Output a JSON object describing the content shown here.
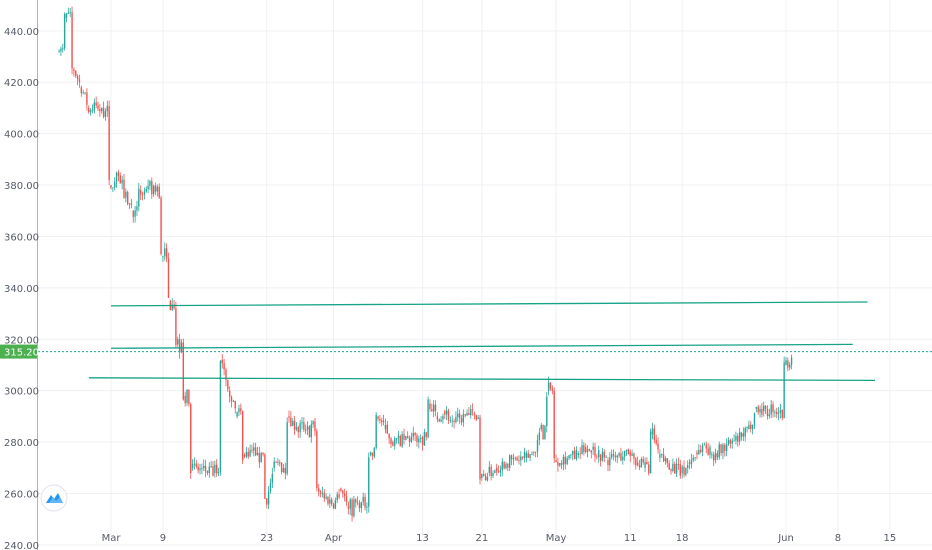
{
  "chart_data": {
    "type": "candlestick",
    "y_axis": {
      "ticks": [
        "440.00",
        "420.00",
        "400.00",
        "380.00",
        "360.00",
        "340.00",
        "320.00",
        "300.00",
        "280.00",
        "260.00",
        "240.00"
      ],
      "ylim": [
        238,
        452
      ]
    },
    "x_axis": {
      "ticks": [
        "Mar",
        "9",
        "23",
        "Apr",
        "13",
        "21",
        "May",
        "11",
        "18",
        "Jun",
        "8",
        "15"
      ],
      "tick_dates": [
        "2020-03-02",
        "2020-03-09",
        "2020-03-23",
        "2020-04-01",
        "2020-04-13",
        "2020-04-21",
        "2020-05-01",
        "2020-05-11",
        "2020-05-18",
        "2020-06-01",
        "2020-06-08",
        "2020-06-15"
      ]
    },
    "current_price": {
      "label": "315.20",
      "value": 315.2
    },
    "colors": {
      "up": "#26a69a",
      "down": "#ef5350",
      "trendline": "#17a388",
      "grid": "#eef0f3",
      "axis": "#555b66",
      "price_badge": "#4caf50"
    },
    "grid": true,
    "trendlines": [
      {
        "x": [
          "2020-03-02",
          "2020-06-12"
        ],
        "y": [
          333,
          334.5
        ]
      },
      {
        "x": [
          "2020-03-02",
          "2020-06-10"
        ],
        "y": [
          316.5,
          318
        ]
      },
      {
        "x": [
          "2020-02-28",
          "2020-06-13"
        ],
        "y": [
          305,
          304
        ]
      }
    ],
    "close_path": [
      [
        "2020-02-24",
        432
      ],
      [
        "2020-02-25",
        445
      ],
      [
        "2020-02-26",
        425
      ],
      [
        "2020-02-27",
        418
      ],
      [
        "2020-02-28",
        410
      ],
      [
        "2020-03-02",
        380
      ],
      [
        "2020-03-03",
        385
      ],
      [
        "2020-03-04",
        375
      ],
      [
        "2020-03-05",
        370
      ],
      [
        "2020-03-06",
        378
      ],
      [
        "2020-03-09",
        352
      ],
      [
        "2020-03-10",
        335
      ],
      [
        "2020-03-11",
        318
      ],
      [
        "2020-03-12",
        298
      ],
      [
        "2020-03-13",
        270
      ],
      [
        "2020-03-16",
        268
      ],
      [
        "2020-03-17",
        312
      ],
      [
        "2020-03-18",
        300
      ],
      [
        "2020-03-19",
        290
      ],
      [
        "2020-03-20",
        275
      ],
      [
        "2020-03-23",
        258
      ],
      [
        "2020-03-24",
        270
      ],
      [
        "2020-03-25",
        272
      ],
      [
        "2020-03-26",
        290
      ],
      [
        "2020-03-27",
        285
      ],
      [
        "2020-03-30",
        262
      ],
      [
        "2020-03-31",
        258
      ],
      [
        "2020-04-01",
        256
      ],
      [
        "2020-04-02",
        262
      ],
      [
        "2020-04-03",
        255
      ],
      [
        "2020-04-06",
        275
      ],
      [
        "2020-04-07",
        290
      ],
      [
        "2020-04-08",
        285
      ],
      [
        "2020-04-09",
        280
      ],
      [
        "2020-04-13",
        282
      ],
      [
        "2020-04-14",
        295
      ],
      [
        "2020-04-15",
        290
      ],
      [
        "2020-04-16",
        292
      ],
      [
        "2020-04-17",
        288
      ],
      [
        "2020-04-20",
        291
      ],
      [
        "2020-04-21",
        266
      ],
      [
        "2020-04-22",
        268
      ],
      [
        "2020-04-23",
        270
      ],
      [
        "2020-04-24",
        272
      ],
      [
        "2020-04-27",
        274
      ],
      [
        "2020-04-28",
        276
      ],
      [
        "2020-04-29",
        285
      ],
      [
        "2020-04-30",
        300
      ],
      [
        "2020-05-01",
        273
      ],
      [
        "2020-05-04",
        275
      ],
      [
        "2020-05-05",
        278
      ],
      [
        "2020-05-06",
        277
      ],
      [
        "2020-05-07",
        275
      ],
      [
        "2020-05-08",
        273
      ],
      [
        "2020-05-11",
        276
      ],
      [
        "2020-05-12",
        272
      ],
      [
        "2020-05-13",
        270
      ],
      [
        "2020-05-14",
        283
      ],
      [
        "2020-05-15",
        274
      ],
      [
        "2020-05-18",
        268
      ],
      [
        "2020-05-19",
        272
      ],
      [
        "2020-05-20",
        276
      ],
      [
        "2020-05-21",
        279
      ],
      [
        "2020-05-22",
        275
      ],
      [
        "2020-05-26",
        282
      ],
      [
        "2020-05-27",
        285
      ],
      [
        "2020-05-28",
        293
      ],
      [
        "2020-05-29",
        292
      ],
      [
        "2020-06-01",
        310
      ],
      [
        "2020-06-02",
        315.2
      ]
    ]
  }
}
